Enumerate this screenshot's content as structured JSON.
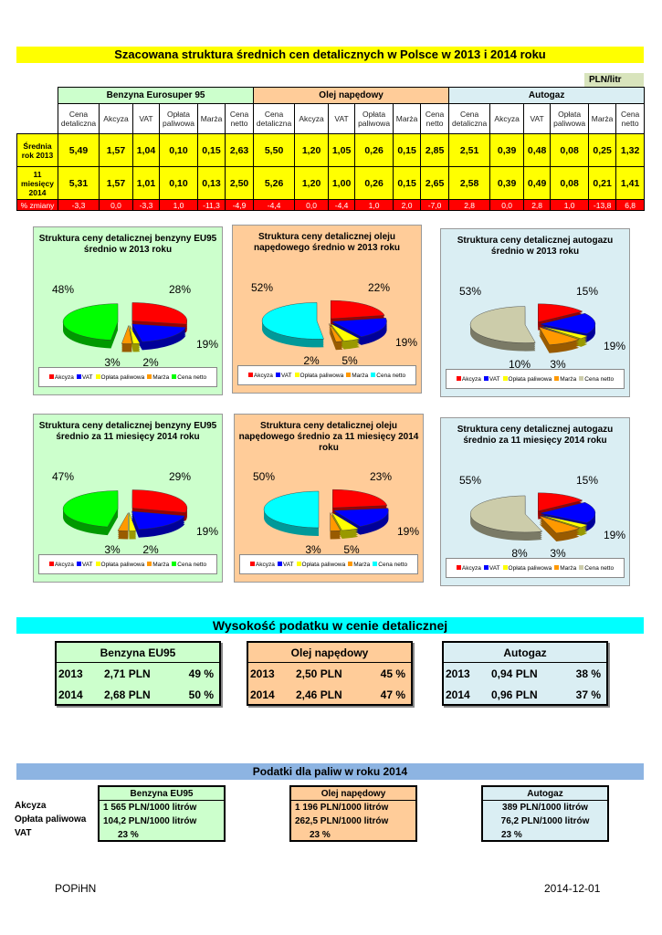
{
  "title": "Szacowana struktura średnich cen detalicznych w Polsce w 2013 i 2014 roku",
  "unit": "PLN/litr",
  "main_table": {
    "groups": [
      "Benzyna Eurosuper 95",
      "Olej napędowy",
      "Autogaz"
    ],
    "columns": [
      "Cena detaliczna",
      "Akcyza",
      "VAT",
      "Opłata paliwowa",
      "Marża",
      "Cena netto"
    ],
    "rows": [
      {
        "label": "Średnia rok 2013",
        "values": [
          "5,49",
          "1,57",
          "1,04",
          "0,10",
          "0,15",
          "2,63",
          "5,50",
          "1,20",
          "1,05",
          "0,26",
          "0,15",
          "2,85",
          "2,51",
          "0,39",
          "0,48",
          "0,08",
          "0,25",
          "1,32"
        ]
      },
      {
        "label": "11 miesięcy 2014",
        "values": [
          "5,31",
          "1,57",
          "1,01",
          "0,10",
          "0,13",
          "2,50",
          "5,26",
          "1,20",
          "1,00",
          "0,26",
          "0,15",
          "2,65",
          "2,58",
          "0,39",
          "0,49",
          "0,08",
          "0,21",
          "1,41"
        ]
      },
      {
        "label": "% zmiany",
        "values": [
          "-3,3",
          "0,0",
          "-3,3",
          "1,0",
          "-11,3",
          "-4,9",
          "-4,4",
          "0,0",
          "-4,4",
          "1,0",
          "2,0",
          "-7,0",
          "2,8",
          "0,0",
          "2,8",
          "1,0",
          "-13,8",
          "6,8"
        ]
      }
    ]
  },
  "chart_data": [
    {
      "type": "pie",
      "title": "Struktura ceny detalicznej benzyny EU95 średnio w 2013 roku",
      "labels": [
        "Akcyza",
        "VAT",
        "Opłata paliwowa",
        "Marża",
        "Cena netto"
      ],
      "values": [
        28,
        19,
        2,
        3,
        48
      ],
      "bg": "#ccffcc"
    },
    {
      "type": "pie",
      "title": "Struktura ceny detalicznej oleju napędowego średnio w 2013 roku",
      "labels": [
        "Akcyza",
        "VAT",
        "Opłata paliwowa",
        "Marża",
        "Cena netto"
      ],
      "values": [
        22,
        19,
        5,
        2,
        52
      ],
      "bg": "#ffcc99"
    },
    {
      "type": "pie",
      "title": "Struktura ceny detalicznej autogazu średnio w 2013 roku",
      "labels": [
        "Akcyza",
        "VAT",
        "Opłata paliwowa",
        "Marża",
        "Cena netto"
      ],
      "values": [
        15,
        19,
        3,
        10,
        53
      ],
      "bg": "#daeef3"
    },
    {
      "type": "pie",
      "title": "Struktura ceny detalicznej benzyny EU95 średnio za 11 miesięcy 2014 roku",
      "labels": [
        "Akcyza",
        "VAT",
        "Opłata paliwowa",
        "Marża",
        "Cena netto"
      ],
      "values": [
        29,
        19,
        2,
        3,
        47
      ],
      "bg": "#ccffcc"
    },
    {
      "type": "pie",
      "title": "Struktura ceny detalicznej oleju napędowego średnio za 11 miesięcy 2014 roku",
      "labels": [
        "Akcyza",
        "VAT",
        "Opłata paliwowa",
        "Marża",
        "Cena netto"
      ],
      "values": [
        23,
        19,
        5,
        3,
        50
      ],
      "bg": "#ffcc99"
    },
    {
      "type": "pie",
      "title": "Struktura ceny detalicznej autogazu średnio za 11 miesięcy 2014 roku",
      "labels": [
        "Akcyza",
        "VAT",
        "Opłata paliwowa",
        "Marża",
        "Cena netto"
      ],
      "values": [
        15,
        19,
        3,
        8,
        55
      ],
      "bg": "#daeef3"
    }
  ],
  "slice_colors": {
    "benzyna": [
      "#ff0000",
      "#0000ff",
      "#ffff00",
      "#ff9900",
      "#00ff00"
    ],
    "olej": [
      "#ff0000",
      "#0000ff",
      "#ffff00",
      "#ff9900",
      "#00ffff"
    ],
    "autogaz": [
      "#ff0000",
      "#0000ff",
      "#ffff00",
      "#ff9900",
      "#ccccaa"
    ]
  },
  "tax_section": {
    "title": "Wysokość podatku w cenie detalicznej",
    "tables": [
      {
        "name": "Benzyna EU95",
        "rows": [
          [
            "2013",
            "2,71 PLN",
            "49 %"
          ],
          [
            "2014",
            "2,68 PLN",
            "50 %"
          ]
        ]
      },
      {
        "name": "Olej napędowy",
        "rows": [
          [
            "2013",
            "2,50 PLN",
            "45 %"
          ],
          [
            "2014",
            "2,46 PLN",
            "47 %"
          ]
        ]
      },
      {
        "name": "Autogaz",
        "rows": [
          [
            "2013",
            "0,94 PLN",
            "38 %"
          ],
          [
            "2014",
            "0,96 PLN",
            "37 %"
          ]
        ]
      }
    ]
  },
  "fuel_tax_section": {
    "title": "Podatki dla paliw w roku 2014",
    "row_labels": [
      "Akcyza",
      "Opłata paliwowa",
      "VAT"
    ],
    "tables": [
      {
        "name": "Benzyna EU95",
        "values": [
          "1 565 PLN/1000 litrów",
          "104,2 PLN/1000 litrów",
          "23 %"
        ]
      },
      {
        "name": "Olej napędowy",
        "values": [
          "1 196 PLN/1000 litrów",
          "262,5 PLN/1000 litrów",
          "23 %"
        ]
      },
      {
        "name": "Autogaz",
        "values": [
          "389 PLN/1000 litrów",
          "76,2 PLN/1000 litrów",
          "23 %"
        ]
      }
    ]
  },
  "footer": {
    "org": "POPiHN",
    "date": "2014-12-01"
  }
}
